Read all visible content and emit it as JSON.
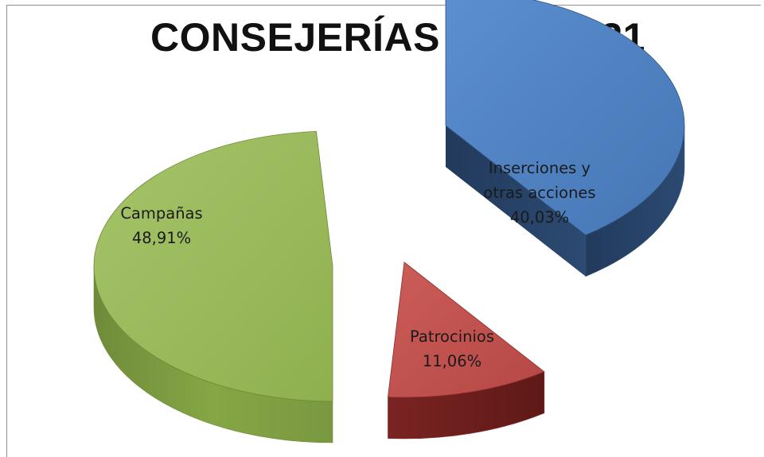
{
  "chart_data": {
    "type": "pie",
    "title": "CONSEJERÍAS 2018-2021",
    "series": [
      {
        "name": "Campañas",
        "value": 48.91,
        "label": "Campañas",
        "value_label": "48,91%",
        "color": "#9bbb59"
      },
      {
        "name": "Inserciones y otras acciones",
        "value": 40.03,
        "label_lines": [
          "Inserciones y",
          "otras acciones"
        ],
        "value_label": "40,03%",
        "color": "#4f81bd"
      },
      {
        "name": "Patrocinios",
        "value": 11.06,
        "label": "Patrocinios",
        "value_label": "11,06%",
        "color": "#c0504d"
      }
    ],
    "style": "3d-exploded",
    "legend": "none"
  }
}
